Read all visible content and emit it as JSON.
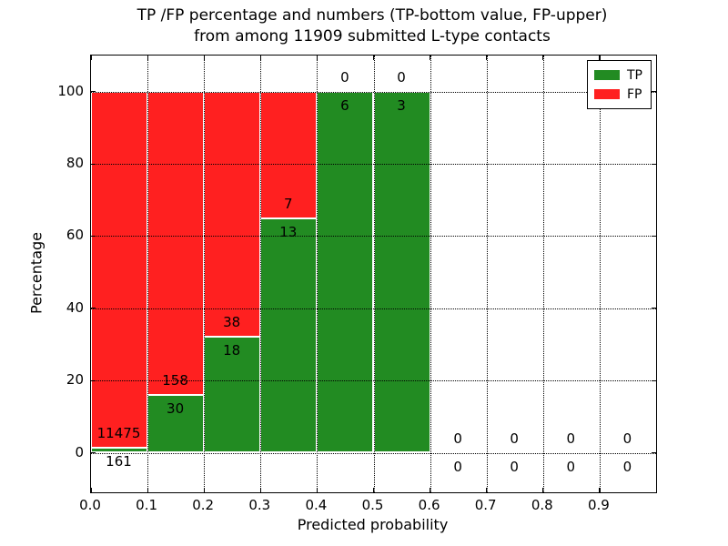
{
  "title": {
    "line1": "TP /FP percentage and numbers (TP-bottom value, FP-upper)",
    "line2": "from among 11909 submitted L-type contacts"
  },
  "axes": {
    "xlabel": "Predicted probability",
    "ylabel": "Percentage",
    "xticks": [
      "0.0",
      "0.1",
      "0.2",
      "0.3",
      "0.4",
      "0.5",
      "0.6",
      "0.7",
      "0.8",
      "0.9"
    ],
    "xtick_values": [
      0.0,
      0.1,
      0.2,
      0.3,
      0.4,
      0.5,
      0.6,
      0.7,
      0.8,
      0.9
    ],
    "yticks": [
      "0",
      "20",
      "40",
      "60",
      "80",
      "100"
    ],
    "ytick_values": [
      0,
      20,
      40,
      60,
      80,
      100
    ],
    "xlim": [
      0.0,
      1.0
    ],
    "ylim": [
      -11,
      110
    ],
    "grid": "dotted black, horizontal and vertical at major ticks"
  },
  "legend": {
    "position": "upper right",
    "items": [
      {
        "label": "TP",
        "color": "#228B22"
      },
      {
        "label": "FP",
        "color": "#ff2020"
      }
    ]
  },
  "colors": {
    "tp": "#228B22",
    "fp": "#ff2020",
    "grid": "#000000",
    "background": "#ffffff"
  },
  "chart_data": {
    "type": "bar",
    "stacked": true,
    "description": "Stacked percentage bars: TP (green) bottom portion, FP (red) upper portion; numeric counts annotated per bin (FP count above boundary, TP count below)",
    "total_submitted": 11909,
    "bin_width": 0.1,
    "bins": [
      {
        "x0": 0.0,
        "x1": 0.1,
        "tp": 161,
        "fp": 11475,
        "tp_pct": 1.4,
        "bar_total_pct": 100
      },
      {
        "x0": 0.1,
        "x1": 0.2,
        "tp": 30,
        "fp": 158,
        "tp_pct": 16.0,
        "bar_total_pct": 100
      },
      {
        "x0": 0.2,
        "x1": 0.3,
        "tp": 18,
        "fp": 38,
        "tp_pct": 32.1,
        "bar_total_pct": 100
      },
      {
        "x0": 0.3,
        "x1": 0.4,
        "tp": 13,
        "fp": 7,
        "tp_pct": 65.0,
        "bar_total_pct": 100
      },
      {
        "x0": 0.4,
        "x1": 0.5,
        "tp": 6,
        "fp": 0,
        "tp_pct": 100,
        "bar_total_pct": 100
      },
      {
        "x0": 0.5,
        "x1": 0.6,
        "tp": 3,
        "fp": 0,
        "tp_pct": 100,
        "bar_total_pct": 100
      },
      {
        "x0": 0.6,
        "x1": 0.7,
        "tp": 0,
        "fp": 0,
        "tp_pct": 0,
        "bar_total_pct": 0
      },
      {
        "x0": 0.7,
        "x1": 0.8,
        "tp": 0,
        "fp": 0,
        "tp_pct": 0,
        "bar_total_pct": 0
      },
      {
        "x0": 0.8,
        "x1": 0.9,
        "tp": 0,
        "fp": 0,
        "tp_pct": 0,
        "bar_total_pct": 0
      },
      {
        "x0": 0.9,
        "x1": 1.0,
        "tp": 0,
        "fp": 0,
        "tp_pct": 0,
        "bar_total_pct": 0
      }
    ]
  }
}
